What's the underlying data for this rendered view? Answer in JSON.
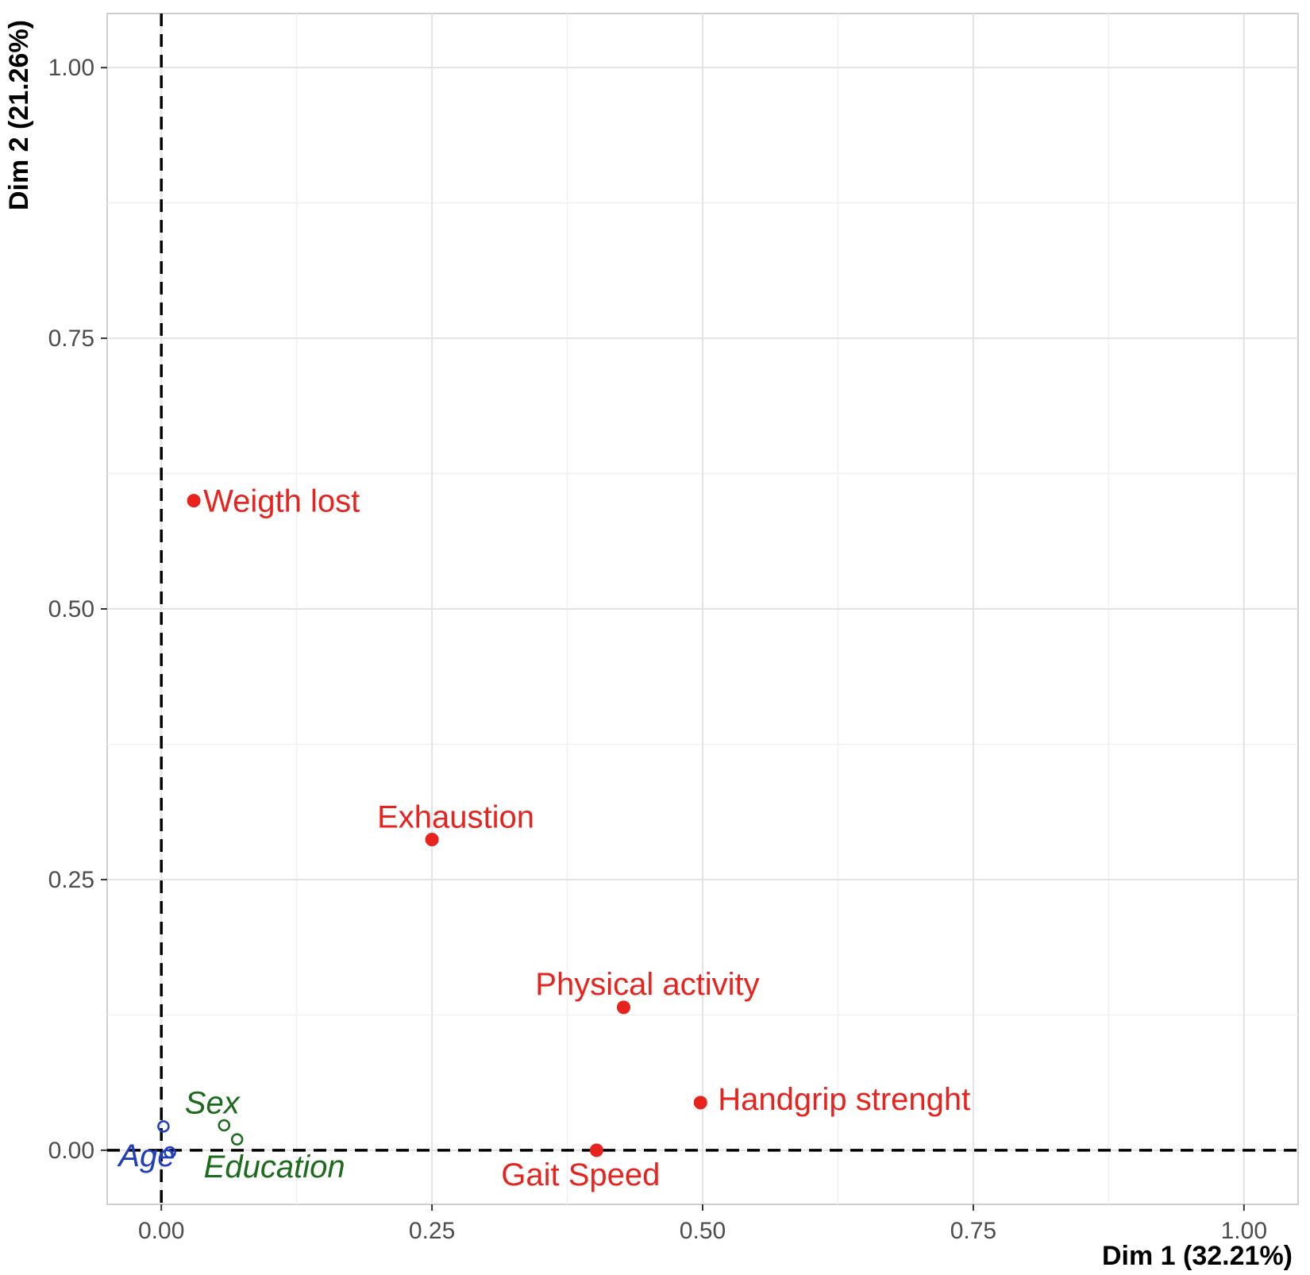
{
  "chart_data": {
    "type": "scatter",
    "title": "",
    "xlabel": "Dim 1 (32.21%)",
    "ylabel": "Dim 2 (21.26%)",
    "xlim": [
      -0.05,
      1.05
    ],
    "ylim": [
      -0.05,
      1.05
    ],
    "x_ticks": [
      0.0,
      0.25,
      0.5,
      0.75,
      1.0
    ],
    "x_tick_labels": [
      "0.00",
      "0.25",
      "0.50",
      "0.75",
      "1.00"
    ],
    "y_ticks": [
      0.0,
      0.25,
      0.5,
      0.75,
      1.0
    ],
    "y_tick_labels": [
      "0.00",
      "0.25",
      "0.50",
      "0.75",
      "1.00"
    ],
    "grid": true,
    "reference_lines": {
      "x": 0,
      "y": 0,
      "style": "dashed"
    },
    "points": [
      {
        "label": "Weigth lost",
        "x": 0.03,
        "y": 0.6,
        "color": "#e8231e",
        "style": "filled"
      },
      {
        "label": "Exhaustion",
        "x": 0.25,
        "y": 0.287,
        "color": "#e8231e",
        "style": "filled"
      },
      {
        "label": "Physical activity",
        "x": 0.427,
        "y": 0.132,
        "color": "#e8231e",
        "style": "filled"
      },
      {
        "label": "Handgrip strenght",
        "x": 0.498,
        "y": 0.044,
        "color": "#e8231e",
        "style": "filled"
      },
      {
        "label": "Gait Speed",
        "x": 0.402,
        "y": 0.0,
        "color": "#e8231e",
        "style": "filled"
      },
      {
        "label": "Sex",
        "x": 0.058,
        "y": 0.023,
        "color": "#1b6b1b",
        "style": "open"
      },
      {
        "label": "Education",
        "x": 0.07,
        "y": 0.01,
        "color": "#1b6b1b",
        "style": "open"
      },
      {
        "label": "Age",
        "x": 0.002,
        "y": 0.022,
        "color": "#1f3fbf",
        "style": "open"
      },
      {
        "label": "",
        "x": 0.008,
        "y": -0.002,
        "color": "#1f3fbf",
        "style": "open"
      }
    ]
  }
}
